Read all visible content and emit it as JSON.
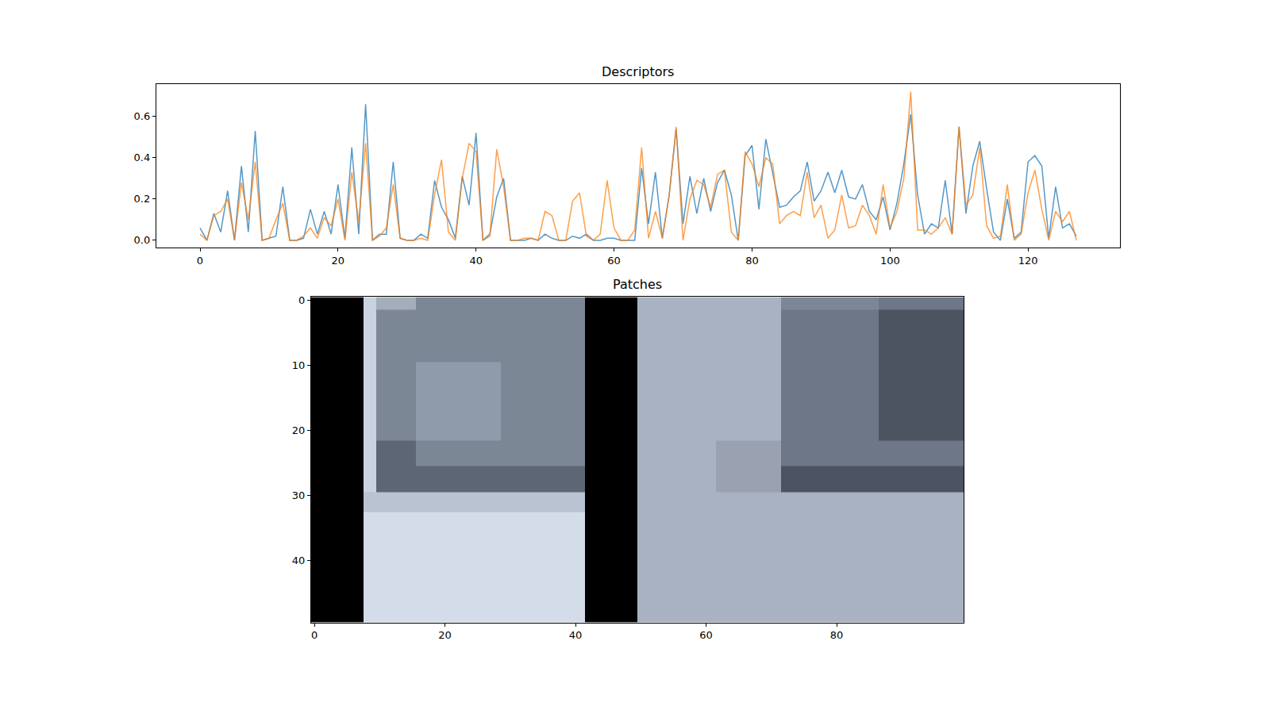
{
  "chart_data": [
    {
      "type": "line",
      "title": "Descriptors",
      "x": [
        0,
        1,
        2,
        3,
        4,
        5,
        6,
        7,
        8,
        9,
        10,
        11,
        12,
        13,
        14,
        15,
        16,
        17,
        18,
        19,
        20,
        21,
        22,
        23,
        24,
        25,
        26,
        27,
        28,
        29,
        30,
        31,
        32,
        33,
        34,
        35,
        36,
        37,
        38,
        39,
        40,
        41,
        42,
        43,
        44,
        45,
        46,
        47,
        48,
        49,
        50,
        51,
        52,
        53,
        54,
        55,
        56,
        57,
        58,
        59,
        60,
        61,
        62,
        63,
        64,
        65,
        66,
        67,
        68,
        69,
        70,
        71,
        72,
        73,
        74,
        75,
        76,
        77,
        78,
        79,
        80,
        81,
        82,
        83,
        84,
        85,
        86,
        87,
        88,
        89,
        90,
        91,
        92,
        93,
        94,
        95,
        96,
        97,
        98,
        99,
        100,
        101,
        102,
        103,
        104,
        105,
        106,
        107,
        108,
        109,
        110,
        111,
        112,
        113,
        114,
        115,
        116,
        117,
        118,
        119,
        120,
        121,
        122,
        123,
        124,
        125,
        126,
        127
      ],
      "series": [
        {
          "color": "#1f77b4",
          "values": [
            0.06,
            0,
            0.13,
            0.04,
            0.24,
            0,
            0.36,
            0.04,
            0.53,
            0,
            0.01,
            0.02,
            0.26,
            0,
            0,
            0.01,
            0.15,
            0.03,
            0.14,
            0.03,
            0.27,
            0.01,
            0.45,
            0.03,
            0.66,
            0,
            0.03,
            0.03,
            0.38,
            0.01,
            0,
            0,
            0.03,
            0.01,
            0.29,
            0.16,
            0.1,
            0.01,
            0.31,
            0.17,
            0.52,
            0,
            0.03,
            0.21,
            0.3,
            0,
            0,
            0,
            0.01,
            0,
            0.03,
            0.01,
            0,
            0,
            0.02,
            0.01,
            0.03,
            0,
            0,
            0.01,
            0.01,
            0,
            0,
            0,
            0.35,
            0.08,
            0.33,
            0.01,
            0.22,
            0.54,
            0.08,
            0.31,
            0.13,
            0.3,
            0.14,
            0.28,
            0.34,
            0.22,
            0,
            0.41,
            0.46,
            0.15,
            0.49,
            0.33,
            0.16,
            0.17,
            0.21,
            0.24,
            0.38,
            0.19,
            0.24,
            0.33,
            0.23,
            0.34,
            0.21,
            0.2,
            0.27,
            0.14,
            0.1,
            0.21,
            0.05,
            0.18,
            0.37,
            0.61,
            0.22,
            0.03,
            0.08,
            0.06,
            0.29,
            0.03,
            0.55,
            0.13,
            0.36,
            0.48,
            0.25,
            0.04,
            0,
            0.2,
            0.01,
            0.04,
            0.38,
            0.41,
            0.36,
            0.01,
            0.26,
            0.06,
            0.08,
            0.02
          ]
        },
        {
          "color": "#ff7f0e",
          "values": [
            0.03,
            0,
            0.12,
            0.14,
            0.2,
            0,
            0.28,
            0.1,
            0.38,
            0,
            0.01,
            0.1,
            0.18,
            0,
            0,
            0.02,
            0.06,
            0.01,
            0.11,
            0.07,
            0.2,
            0,
            0.33,
            0.09,
            0.47,
            0,
            0.02,
            0.06,
            0.27,
            0.01,
            0,
            0,
            0.01,
            0,
            0.22,
            0.39,
            0.04,
            0,
            0.3,
            0.47,
            0.43,
            0,
            0.02,
            0.44,
            0.26,
            0,
            0,
            0.01,
            0.01,
            0,
            0.14,
            0.12,
            0,
            0,
            0.19,
            0.23,
            0.02,
            0,
            0.03,
            0.29,
            0.06,
            0,
            0,
            0.05,
            0.45,
            0.01,
            0.14,
            0.01,
            0.22,
            0.55,
            0,
            0.2,
            0.29,
            0.27,
            0.16,
            0.32,
            0.34,
            0.04,
            0,
            0.43,
            0.37,
            0.26,
            0.4,
            0.37,
            0.08,
            0.12,
            0.14,
            0.12,
            0.33,
            0.11,
            0.17,
            0.01,
            0.05,
            0.22,
            0.06,
            0.07,
            0.17,
            0.12,
            0.03,
            0.27,
            0.06,
            0.14,
            0.3,
            0.72,
            0.05,
            0.05,
            0.03,
            0.06,
            0.11,
            0.03,
            0.55,
            0.17,
            0.22,
            0.45,
            0.07,
            0.01,
            0.02,
            0.27,
            0,
            0.03,
            0.23,
            0.34,
            0.15,
            0,
            0.14,
            0.09,
            0.14,
            0
          ]
        }
      ],
      "xlim": [
        -6.35,
        133.35
      ],
      "xticks": [
        0,
        20,
        40,
        60,
        80,
        100,
        120
      ],
      "ylim": [
        -0.036,
        0.756
      ],
      "yticks": [
        {
          "value": 0,
          "label": "0.0"
        },
        0.2,
        0.4,
        0.6
      ]
    },
    {
      "type": "image",
      "title": "Patches",
      "x_edges": [
        -0.5,
        7.5,
        9.5,
        15.5,
        28.5,
        41.5,
        49.5,
        61.5,
        71.5,
        86.5,
        99.5
      ],
      "y_edges": [
        -0.5,
        1.5,
        9.5,
        21.5,
        25.5,
        29.5,
        32.5,
        49.5
      ],
      "palette": [
        "#000000",
        "#c9d3df",
        "#a4aebb",
        "#7c8796",
        "#8f9bab",
        "#5d6674",
        "#b9c3d1",
        "#d3dce8",
        "#a8b2c3",
        "#9aa2b2",
        "#6d7787",
        "#4c5462"
      ],
      "pixels": [
        [
          0,
          1,
          2,
          3,
          3,
          0,
          8,
          8,
          3,
          10
        ],
        [
          0,
          1,
          3,
          3,
          3,
          0,
          8,
          8,
          10,
          11
        ],
        [
          0,
          1,
          3,
          4,
          3,
          0,
          8,
          8,
          10,
          11
        ],
        [
          0,
          1,
          5,
          3,
          3,
          0,
          8,
          9,
          10,
          10
        ],
        [
          0,
          1,
          5,
          5,
          5,
          0,
          8,
          9,
          11,
          11
        ],
        [
          0,
          6,
          6,
          6,
          6,
          0,
          8,
          8,
          8,
          8
        ],
        [
          0,
          7,
          7,
          7,
          7,
          0,
          8,
          8,
          8,
          8
        ]
      ],
      "xlim": [
        -0.5,
        99.5
      ],
      "xticks": [
        0,
        20,
        40,
        60,
        80
      ],
      "ylim": [
        49.5,
        -0.5
      ],
      "yticks": [
        0,
        10,
        20,
        30,
        40
      ]
    }
  ]
}
